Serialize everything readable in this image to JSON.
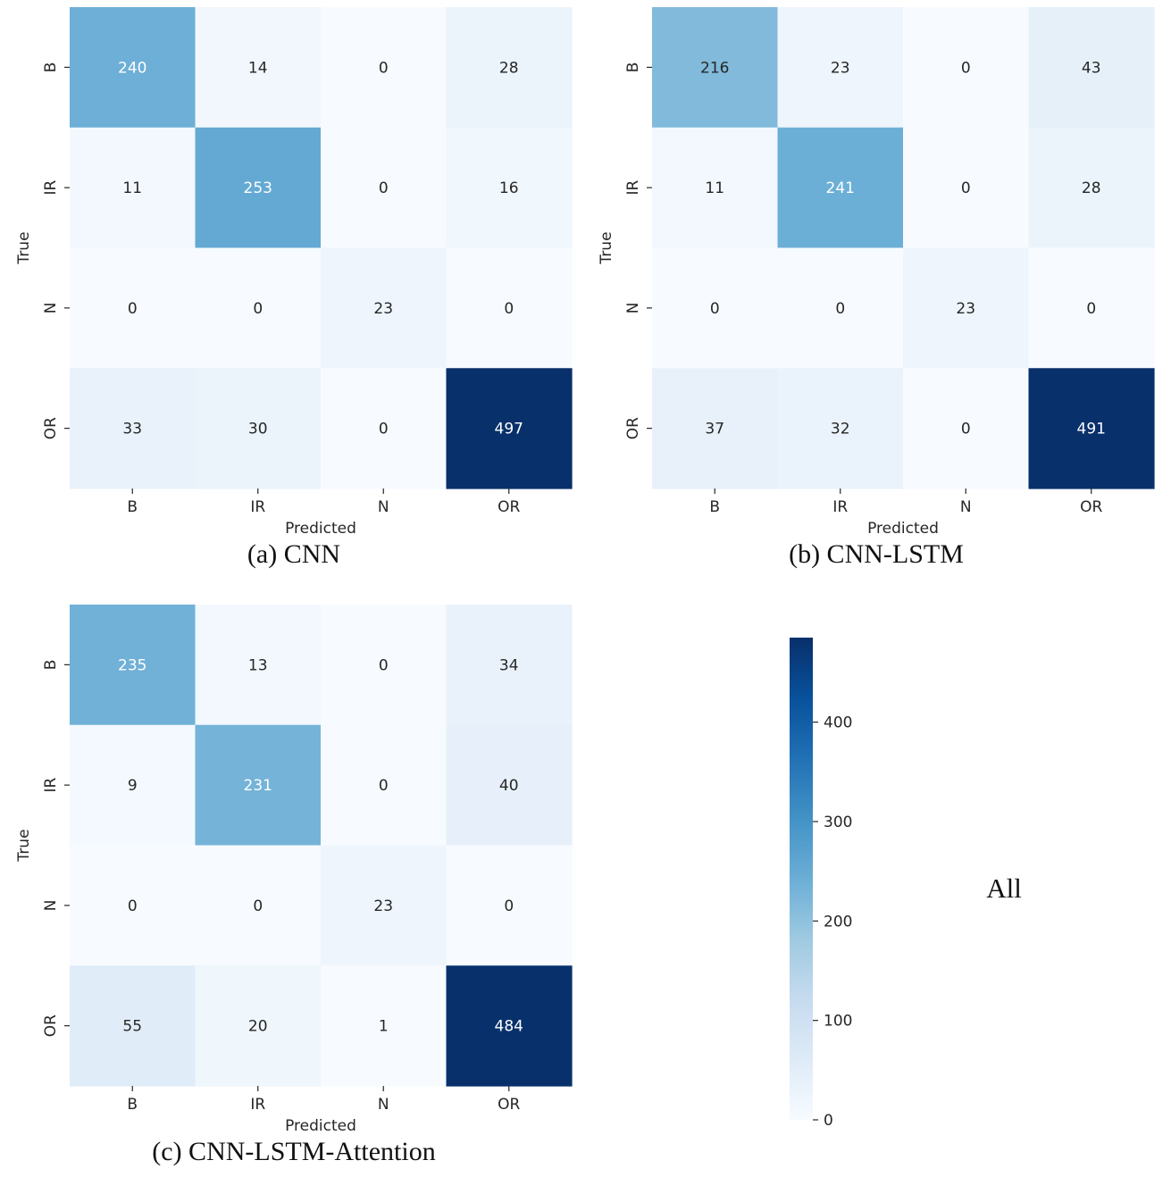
{
  "chart_data": [
    {
      "type": "heatmap",
      "caption": "(a) CNN",
      "xlabel": "Predicted",
      "ylabel": "True",
      "x_categories": [
        "B",
        "IR",
        "N",
        "OR"
      ],
      "y_categories": [
        "B",
        "IR",
        "N",
        "OR"
      ],
      "matrix": [
        [
          240,
          14,
          0,
          28
        ],
        [
          11,
          253,
          0,
          16
        ],
        [
          0,
          0,
          23,
          0
        ],
        [
          33,
          30,
          0,
          497
        ]
      ]
    },
    {
      "type": "heatmap",
      "caption": "(b) CNN-LSTM",
      "xlabel": "Predicted",
      "ylabel": "True",
      "x_categories": [
        "B",
        "IR",
        "N",
        "OR"
      ],
      "y_categories": [
        "B",
        "IR",
        "N",
        "OR"
      ],
      "matrix": [
        [
          216,
          23,
          0,
          43
        ],
        [
          11,
          241,
          0,
          28
        ],
        [
          0,
          0,
          23,
          0
        ],
        [
          37,
          32,
          0,
          491
        ]
      ]
    },
    {
      "type": "heatmap",
      "caption": "(c)  CNN-LSTM-Attention",
      "xlabel": "Predicted",
      "ylabel": "True",
      "x_categories": [
        "B",
        "IR",
        "N",
        "OR"
      ],
      "y_categories": [
        "B",
        "IR",
        "N",
        "OR"
      ],
      "matrix": [
        [
          235,
          13,
          0,
          34
        ],
        [
          9,
          231,
          0,
          40
        ],
        [
          0,
          0,
          23,
          0
        ],
        [
          55,
          20,
          1,
          484
        ]
      ]
    }
  ],
  "colorbar": {
    "colormap": "Blues",
    "min": 0,
    "max": 485,
    "ticks": [
      0,
      100,
      200,
      300,
      400
    ],
    "label": "All"
  },
  "colors": {
    "text_dark": "#262626",
    "text_light": "#ffffff"
  }
}
